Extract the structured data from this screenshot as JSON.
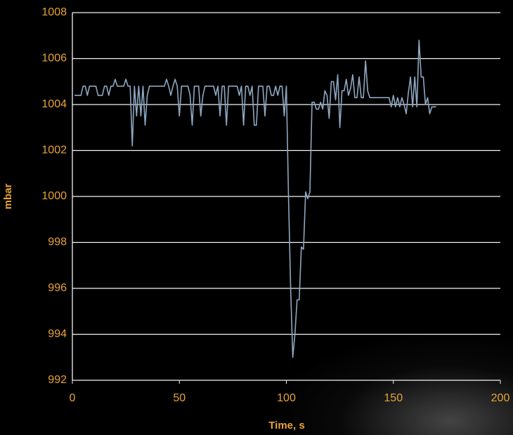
{
  "chart_data": {
    "type": "line",
    "xlabel": "Time, s",
    "ylabel": "mbar",
    "x": [
      1,
      2,
      3,
      4,
      5,
      6,
      7,
      8,
      9,
      10,
      11,
      12,
      13,
      14,
      15,
      16,
      17,
      18,
      19,
      20,
      21,
      22,
      23,
      24,
      25,
      26,
      27,
      28,
      29,
      30,
      31,
      32,
      33,
      34,
      35,
      36,
      37,
      38,
      39,
      40,
      41,
      42,
      43,
      44,
      45,
      46,
      47,
      48,
      49,
      50,
      51,
      52,
      53,
      54,
      55,
      56,
      57,
      58,
      59,
      60,
      61,
      62,
      63,
      64,
      65,
      66,
      67,
      68,
      69,
      70,
      71,
      72,
      73,
      74,
      75,
      76,
      77,
      78,
      79,
      80,
      81,
      82,
      83,
      84,
      85,
      86,
      87,
      88,
      89,
      90,
      91,
      92,
      93,
      94,
      95,
      96,
      97,
      98,
      99,
      100,
      101,
      102,
      103,
      104,
      105,
      106,
      107,
      108,
      109,
      110,
      111,
      112,
      113,
      114,
      115,
      116,
      117,
      118,
      119,
      120,
      121,
      122,
      123,
      124,
      125,
      126,
      127,
      128,
      129,
      130,
      131,
      132,
      133,
      134,
      135,
      136,
      137,
      138,
      139,
      140,
      141,
      142,
      143,
      144,
      145,
      146,
      147,
      148,
      149,
      150,
      151,
      152,
      153,
      154,
      155,
      156,
      157,
      158,
      159,
      160,
      161,
      162,
      163,
      164,
      165,
      166,
      167,
      168,
      169,
      170
    ],
    "series": [
      {
        "color": "#8ea7c0",
        "values": [
          1004.4,
          1004.4,
          1004.4,
          1004.4,
          1004.8,
          1004.8,
          1004.4,
          1004.8,
          1004.8,
          1004.8,
          1004.8,
          1004.4,
          1004.4,
          1004.4,
          1004.8,
          1004.8,
          1004.4,
          1004.8,
          1004.8,
          1005.1,
          1004.8,
          1004.8,
          1004.8,
          1004.8,
          1005.1,
          1004.8,
          1004.8,
          1002.2,
          1004.8,
          1003.5,
          1004.8,
          1003.5,
          1004.8,
          1003.1,
          1004.4,
          1004.8,
          1004.8,
          1004.8,
          1004.8,
          1004.8,
          1004.8,
          1004.8,
          1004.8,
          1005.1,
          1004.8,
          1004.4,
          1004.8,
          1005.1,
          1004.8,
          1003.5,
          1004.8,
          1004.8,
          1004.8,
          1004.8,
          1004.4,
          1003.1,
          1004.8,
          1004.8,
          1004.8,
          1003.5,
          1004.4,
          1004.8,
          1004.8,
          1004.8,
          1004.8,
          1004.8,
          1004.4,
          1004.8,
          1003.5,
          1004.8,
          1004.8,
          1003.1,
          1004.8,
          1004.8,
          1004.8,
          1004.8,
          1004.8,
          1004.4,
          1004.8,
          1003.1,
          1004.8,
          1004.8,
          1004.4,
          1004.8,
          1003.1,
          1003.1,
          1004.8,
          1004.8,
          1004.8,
          1003.5,
          1004.8,
          1004.8,
          1004.4,
          1004.4,
          1004.8,
          1004.4,
          1004.8,
          1004.8,
          1003.5,
          1004.8,
          1000,
          996,
          993,
          994,
          995.5,
          995.5,
          997.8,
          997.7,
          1000.2,
          999.9,
          1000.2,
          1004.1,
          1004.1,
          1003.8,
          1003.8,
          1004.1,
          1003.8,
          1004.6,
          1004.4,
          1003.4,
          1005,
          1005,
          1004.2,
          1005.3,
          1003,
          1004.6,
          1004.6,
          1005.1,
          1004.4,
          1004.7,
          1005.3,
          1004.3,
          1004.3,
          1005.2,
          1004.3,
          1004.3,
          1005.9,
          1004.6,
          1004.3,
          1004.3,
          1004.3,
          1004.3,
          1004.3,
          1004.3,
          1004.3,
          1004.3,
          1004.3,
          1004.3,
          1003.9,
          1004.4,
          1003.9,
          1004.3,
          1003.9,
          1004.3,
          1004,
          1003.6,
          1004.5,
          1005.2,
          1003.9,
          1005.2,
          1003.9,
          1006.8,
          1005.2,
          1005.2,
          1004,
          1004.3,
          1003.6,
          1003.9,
          1003.9,
          1003.9
        ]
      }
    ],
    "xlim": [
      0,
      200
    ],
    "xticks": [
      0,
      50,
      100,
      150,
      200
    ],
    "ylim": [
      992,
      1008
    ],
    "yticks": [
      992,
      994,
      996,
      998,
      1000,
      1002,
      1004,
      1006,
      1008
    ],
    "grid": true
  }
}
